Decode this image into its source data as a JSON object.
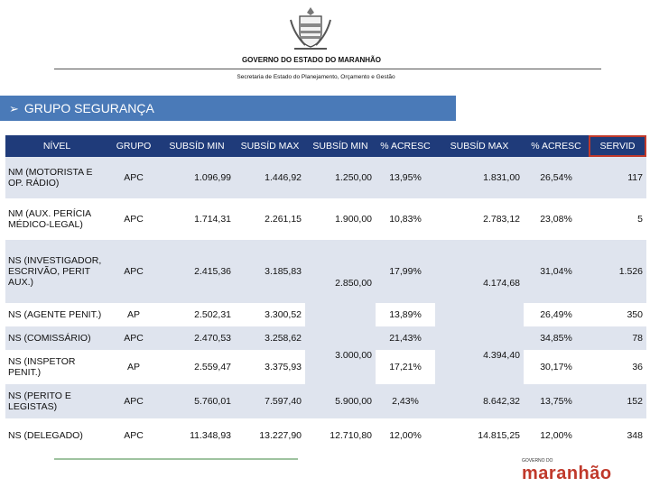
{
  "header": {
    "government": "GOVERNO DO ESTADO DO MARANHÃO",
    "secretaria": "Secretaria de Estado do Planejamento, Orçamento e Gestão"
  },
  "banner": {
    "title": "GRUPO SEGURANÇA"
  },
  "table": {
    "columns": [
      "NÍVEL",
      "GRUPO",
      "SUBSÍD MIN",
      "SUBSÍD MAX",
      "SUBSÍD MIN",
      "% ACRESC",
      "SUBSÍD MAX",
      "% ACRESC",
      "SERVID"
    ],
    "rows": [
      {
        "nivel": "NM (MOTORISTA E OP. RÁDIO)",
        "grupo": "APC",
        "min1": "1.096,99",
        "max1": "1.446,92",
        "min2": "1.250,00",
        "acr1": "13,95%",
        "max2": "1.831,00",
        "acr2": "26,54%",
        "servid": "117"
      },
      {
        "nivel": "NM (AUX. PERÍCIA MÉDICO-LEGAL)",
        "grupo": "APC",
        "min1": "1.714,31",
        "max1": "2.261,15",
        "min2": "1.900,00",
        "acr1": "10,83%",
        "max2": "2.783,12",
        "acr2": "23,08%",
        "servid": "5"
      },
      {
        "nivel": "NS (INVESTIGADOR, ESCRIVÃO, PERIT AUX.)",
        "grupo": "APC",
        "min1": "2.415,36",
        "max1": "3.185,83",
        "min2": "2.850,00",
        "acr1": "17,99%",
        "max2": "4.174,68",
        "acr2": "31,04%",
        "servid": "1.526"
      },
      {
        "nivel": "NS (AGENTE PENIT.)",
        "grupo": "AP",
        "min1": "2.502,31",
        "max1": "3.300,52",
        "acr1": "13,89%",
        "acr2": "26,49%",
        "servid": "350"
      },
      {
        "nivel": "NS (COMISSÁRIO)",
        "grupo": "APC",
        "min1": "2.470,53",
        "max1": "3.258,62",
        "min2": "3.000,00",
        "acr1": "21,43%",
        "max2": "4.394,40",
        "acr2": "34,85%",
        "servid": "78"
      },
      {
        "nivel": "NS (INSPETOR PENIT.)",
        "grupo": "AP",
        "min1": "2.559,47",
        "max1": "3.375,93",
        "acr1": "17,21%",
        "acr2": "30,17%",
        "servid": "36"
      },
      {
        "nivel": "NS (PERITO E LEGISTAS)",
        "grupo": "APC",
        "min1": "5.760,01",
        "max1": "7.597,40",
        "min2": "5.900,00",
        "acr1": "2,43%",
        "max2": "8.642,32",
        "acr2": "13,75%",
        "servid": "152"
      },
      {
        "nivel": "NS (DELEGADO)",
        "grupo": "APC",
        "min1": "11.348,93",
        "max1": "13.227,90",
        "min2": "12.710,80",
        "acr1": "12,00%",
        "max2": "14.815,25",
        "acr2": "12,00%",
        "servid": "348"
      }
    ]
  },
  "logo": {
    "small": "GOVERNO DO",
    "big": "maranhão"
  },
  "colors": {
    "banner": "#4a7ab8",
    "header": "#1f3b7a",
    "logo": "#c0392b"
  }
}
